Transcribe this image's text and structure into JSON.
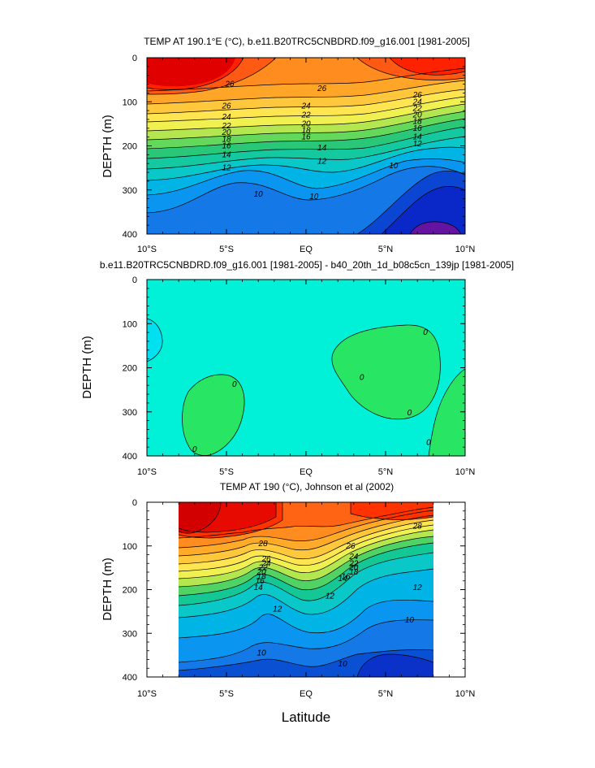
{
  "x_axis_label": "Latitude",
  "chart_data": [
    {
      "type": "contour",
      "title": "TEMP AT 190.1°E (°C), b.e11.B20TRC5CNBDRD.f09_g16.001 [1981-2005]",
      "ylabel": "DEPTH (m)",
      "xlim": [
        -10,
        10
      ],
      "ylim": [
        400,
        0
      ],
      "x_ticks": [
        -10,
        -5,
        0,
        5,
        10
      ],
      "x_tick_labels": [
        "10°S",
        "5°S",
        "EQ",
        "5°N",
        "10°N"
      ],
      "y_ticks": [
        0,
        100,
        200,
        300,
        400
      ],
      "y_tick_labels": [
        "0",
        "100",
        "200",
        "300",
        "400"
      ],
      "contour_levels": [
        28,
        27,
        26,
        25,
        24,
        23,
        22,
        21,
        20,
        19,
        18,
        17,
        16,
        15,
        14,
        13,
        12,
        11,
        10,
        9,
        8
      ],
      "fill_colors": [
        "#e00000",
        "#ff2200",
        "#ff5a14",
        "#ff8c1e",
        "#ffa528",
        "#ffc83c",
        "#ffe650",
        "#f0f050",
        "#b4e650",
        "#64d85a",
        "#28c878",
        "#14c8a0",
        "#0ac8c8",
        "#00b4e6",
        "#0a96f0",
        "#1478e6",
        "#1464dc",
        "#0a46d2",
        "#0a28c8",
        "#3c14b4",
        "#6414a0"
      ],
      "contour_labels": [
        {
          "lat": -4.8,
          "depth": 60,
          "text": "26"
        },
        {
          "lat": 1,
          "depth": 70,
          "text": "26"
        },
        {
          "lat": 7,
          "depth": 85,
          "text": "26"
        },
        {
          "lat": -5,
          "depth": 110,
          "text": "26"
        },
        {
          "lat": -5,
          "depth": 135,
          "text": "24"
        },
        {
          "lat": 0,
          "depth": 110,
          "text": "24"
        },
        {
          "lat": 7,
          "depth": 100,
          "text": "24"
        },
        {
          "lat": -5,
          "depth": 155,
          "text": "22"
        },
        {
          "lat": 0,
          "depth": 130,
          "text": "22"
        },
        {
          "lat": 7,
          "depth": 115,
          "text": "22"
        },
        {
          "lat": -5,
          "depth": 170,
          "text": "20"
        },
        {
          "lat": 0,
          "depth": 150,
          "text": "20"
        },
        {
          "lat": 7,
          "depth": 130,
          "text": "20"
        },
        {
          "lat": -5,
          "depth": 185,
          "text": "18"
        },
        {
          "lat": 0,
          "depth": 165,
          "text": "18"
        },
        {
          "lat": 7,
          "depth": 145,
          "text": "18"
        },
        {
          "lat": -5,
          "depth": 200,
          "text": "16"
        },
        {
          "lat": 0,
          "depth": 180,
          "text": "16"
        },
        {
          "lat": 7,
          "depth": 160,
          "text": "16"
        },
        {
          "lat": -5,
          "depth": 220,
          "text": "14"
        },
        {
          "lat": 1,
          "depth": 205,
          "text": "14"
        },
        {
          "lat": 7,
          "depth": 180,
          "text": "14"
        },
        {
          "lat": -5,
          "depth": 250,
          "text": "12"
        },
        {
          "lat": 1,
          "depth": 235,
          "text": "12"
        },
        {
          "lat": 7,
          "depth": 195,
          "text": "12"
        },
        {
          "lat": -3,
          "depth": 310,
          "text": "10"
        },
        {
          "lat": 0.5,
          "depth": 315,
          "text": "10"
        },
        {
          "lat": 5.5,
          "depth": 245,
          "text": "10"
        }
      ]
    },
    {
      "type": "contour",
      "title": "b.e11.B20TRC5CNBDRD.f09_g16.001 [1981-2005] - b40_20th_1d_b08c5cn_139jp [1981-2005]",
      "ylabel": "DEPTH (m)",
      "xlim": [
        -10,
        10
      ],
      "ylim": [
        400,
        0
      ],
      "x_ticks": [
        -10,
        -5,
        0,
        5,
        10
      ],
      "x_tick_labels": [
        "10°S",
        "5°S",
        "EQ",
        "5°N",
        "10°N"
      ],
      "y_ticks": [
        0,
        100,
        200,
        300,
        400
      ],
      "y_tick_labels": [
        "0",
        "100",
        "200",
        "300",
        "400"
      ],
      "background_color": "#00f0d8",
      "positive_color": "#00e0f0",
      "negative_color": "#28e664",
      "contour_labels": [
        {
          "lat": -4.5,
          "depth": 238,
          "text": "0"
        },
        {
          "lat": -7,
          "depth": 385,
          "text": "0"
        },
        {
          "lat": 3.5,
          "depth": 222,
          "text": "0"
        },
        {
          "lat": 7.5,
          "depth": 120,
          "text": "0"
        },
        {
          "lat": 6.5,
          "depth": 302,
          "text": "0"
        },
        {
          "lat": 7.7,
          "depth": 370,
          "text": "0"
        }
      ]
    },
    {
      "type": "contour",
      "title": "TEMP AT 190 (°C), Johnson et al (2002)",
      "ylabel": "DEPTH (m)",
      "xlim": [
        -10,
        10
      ],
      "ylim": [
        400,
        0
      ],
      "data_lat_range": [
        -8,
        8
      ],
      "data_depth_range": [
        10,
        400
      ],
      "x_ticks": [
        -10,
        -5,
        0,
        5,
        10
      ],
      "x_tick_labels": [
        "10°S",
        "5°S",
        "EQ",
        "5°N",
        "10°N"
      ],
      "y_ticks": [
        0,
        100,
        200,
        300,
        400
      ],
      "y_tick_labels": [
        "0",
        "100",
        "200",
        "300",
        "400"
      ],
      "contour_levels": [
        29,
        28,
        27,
        26,
        25,
        24,
        23,
        22,
        21,
        20,
        19,
        18,
        17,
        16,
        15,
        14,
        13,
        12,
        11,
        10,
        9
      ],
      "fill_colors": [
        "#d20000",
        "#e60a00",
        "#ff3200",
        "#ff6414",
        "#ff8c1e",
        "#ffaa28",
        "#ffc83c",
        "#ffe650",
        "#f0f050",
        "#b4e650",
        "#50d264",
        "#14c896",
        "#0ac8c8",
        "#00b4e6",
        "#0a96f0",
        "#1478e6",
        "#1464dc",
        "#0a50d2",
        "#0a32c8",
        "#1414b4",
        "#3214a0"
      ],
      "contour_labels": [
        {
          "lat": -2.7,
          "depth": 95,
          "text": "28"
        },
        {
          "lat": 7,
          "depth": 55,
          "text": "28"
        },
        {
          "lat": -2.5,
          "depth": 130,
          "text": "26"
        },
        {
          "lat": 2.8,
          "depth": 100,
          "text": "26"
        },
        {
          "lat": -2.5,
          "depth": 140,
          "text": "24"
        },
        {
          "lat": 3,
          "depth": 125,
          "text": "24"
        },
        {
          "lat": -2.7,
          "depth": 150,
          "text": "22"
        },
        {
          "lat": 3,
          "depth": 140,
          "text": "22"
        },
        {
          "lat": -2.8,
          "depth": 160,
          "text": "20"
        },
        {
          "lat": 3,
          "depth": 150,
          "text": "20"
        },
        {
          "lat": -2.8,
          "depth": 170,
          "text": "18"
        },
        {
          "lat": 3,
          "depth": 160,
          "text": "18"
        },
        {
          "lat": -2.9,
          "depth": 180,
          "text": "16"
        },
        {
          "lat": 2.5,
          "depth": 170,
          "text": "16"
        },
        {
          "lat": -3,
          "depth": 195,
          "text": "14"
        },
        {
          "lat": 2.3,
          "depth": 175,
          "text": "14"
        },
        {
          "lat": -1.8,
          "depth": 245,
          "text": "12"
        },
        {
          "lat": 1.5,
          "depth": 215,
          "text": "12"
        },
        {
          "lat": 7,
          "depth": 195,
          "text": "12"
        },
        {
          "lat": -2.8,
          "depth": 345,
          "text": "10"
        },
        {
          "lat": 2.3,
          "depth": 370,
          "text": "10"
        },
        {
          "lat": 6.5,
          "depth": 270,
          "text": "10"
        }
      ]
    }
  ]
}
